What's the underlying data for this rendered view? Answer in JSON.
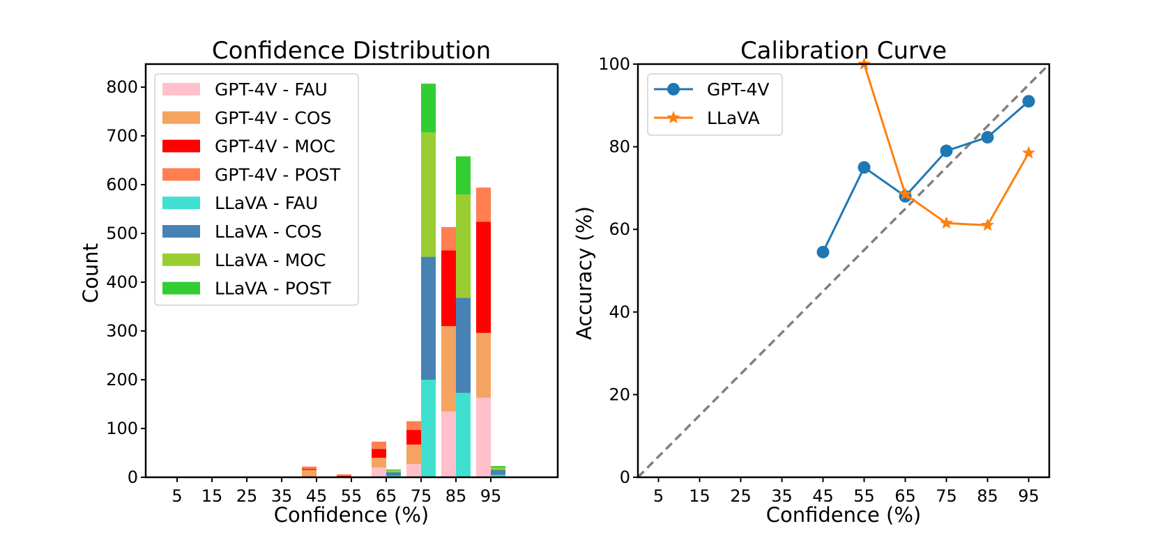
{
  "chart_data": [
    {
      "type": "bar",
      "title": "Confidence Distribution",
      "xlabel": "Confidence (%)",
      "ylabel": "Count",
      "ylim": [
        0,
        850
      ],
      "yticks": [
        0,
        100,
        200,
        300,
        400,
        500,
        600,
        700,
        800
      ],
      "categories": [
        "5",
        "15",
        "25",
        "35",
        "45",
        "55",
        "65",
        "75",
        "85",
        "95"
      ],
      "legend_position": "top-left",
      "groups": [
        {
          "name": "GPT-4V",
          "stacks": [
            {
              "name": "GPT-4V - FAU",
              "color": "#ffc0cb",
              "values": [
                0,
                0,
                0,
                0,
                0,
                0,
                20,
                27,
                135,
                163
              ]
            },
            {
              "name": "GPT-4V - COS",
              "color": "#f4a460",
              "values": [
                0,
                0,
                0,
                0,
                15,
                0,
                20,
                40,
                175,
                133
              ]
            },
            {
              "name": "GPT-4V - MOC",
              "color": "#ff0000",
              "values": [
                0,
                0,
                0,
                0,
                2,
                3,
                18,
                30,
                155,
                228
              ]
            },
            {
              "name": "GPT-4V - POST",
              "color": "#ff7f50",
              "values": [
                0,
                0,
                0,
                0,
                5,
                3,
                15,
                18,
                48,
                70
              ]
            }
          ]
        },
        {
          "name": "LLaVA",
          "stacks": [
            {
              "name": "LLaVA - FAU",
              "color": "#40e0d0",
              "values": [
                0,
                0,
                0,
                0,
                0,
                0,
                3,
                200,
                173,
                5
              ]
            },
            {
              "name": "LLaVA - COS",
              "color": "#4682b4",
              "values": [
                0,
                0,
                0,
                0,
                0,
                0,
                7,
                252,
                195,
                10
              ]
            },
            {
              "name": "LLaVA - MOC",
              "color": "#9acd32",
              "values": [
                0,
                0,
                0,
                0,
                0,
                0,
                4,
                255,
                212,
                5
              ]
            },
            {
              "name": "LLaVA - POST",
              "color": "#32cd32",
              "values": [
                0,
                0,
                0,
                0,
                0,
                0,
                2,
                100,
                78,
                3
              ]
            }
          ]
        }
      ]
    },
    {
      "type": "line",
      "title": "Calibration Curve",
      "xlabel": "Confidence (%)",
      "ylabel": "Accuracy (%)",
      "xlim": [
        0,
        100
      ],
      "ylim": [
        0,
        100
      ],
      "xticks": [
        5,
        15,
        25,
        35,
        45,
        55,
        65,
        75,
        85,
        95
      ],
      "yticks": [
        0,
        20,
        40,
        60,
        80,
        100
      ],
      "legend_position": "top-left",
      "reference_line": {
        "from": [
          0,
          0
        ],
        "to": [
          100,
          100
        ],
        "style": "dashed",
        "color": "#808080"
      },
      "series": [
        {
          "name": "GPT-4V",
          "color": "#1f77b4",
          "marker": "circle",
          "x": [
            45,
            55,
            65,
            75,
            85,
            95
          ],
          "y": [
            54.5,
            75,
            68,
            79,
            82.3,
            91
          ]
        },
        {
          "name": "LLaVA",
          "color": "#ff7f0e",
          "marker": "star",
          "x": [
            55,
            65,
            75,
            85,
            95
          ],
          "y": [
            100,
            68.5,
            61.5,
            61,
            78.5
          ]
        }
      ]
    }
  ]
}
